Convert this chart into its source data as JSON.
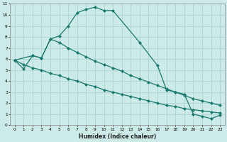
{
  "xlabel": "Humidex (Indice chaleur)",
  "bg_color": "#cceae7",
  "grid_color": "#aad4d0",
  "line_color": "#1a7a6e",
  "xlim": [
    -0.5,
    23.5
  ],
  "ylim": [
    0,
    11
  ],
  "xticks": [
    0,
    1,
    2,
    3,
    4,
    5,
    6,
    7,
    8,
    9,
    10,
    11,
    12,
    13,
    14,
    15,
    16,
    17,
    18,
    19,
    20,
    21,
    22,
    23
  ],
  "yticks": [
    0,
    1,
    2,
    3,
    4,
    5,
    6,
    7,
    8,
    9,
    10,
    11
  ],
  "curve1_x": [
    0,
    1,
    2,
    3,
    4,
    5,
    6,
    7,
    8,
    9,
    10,
    11,
    14,
    16,
    17,
    18,
    19,
    20,
    21,
    22,
    23
  ],
  "curve1_y": [
    5.9,
    5.1,
    6.3,
    6.1,
    7.8,
    8.1,
    9.0,
    10.2,
    10.5,
    10.7,
    10.4,
    10.4,
    7.5,
    5.4,
    3.2,
    3.0,
    2.8,
    1.0,
    0.8,
    0.6,
    0.9
  ],
  "curve2_x": [
    0,
    2,
    3,
    4,
    5,
    6,
    7,
    8,
    9,
    10,
    11,
    12,
    13,
    14,
    15,
    16,
    17,
    18,
    19,
    20,
    21,
    22,
    23
  ],
  "curve2_y": [
    5.9,
    6.3,
    6.1,
    7.8,
    7.5,
    7.0,
    6.6,
    6.2,
    5.8,
    5.5,
    5.2,
    4.9,
    4.5,
    4.2,
    3.9,
    3.6,
    3.3,
    3.0,
    2.7,
    2.4,
    2.2,
    2.0,
    1.8
  ],
  "curve3_x": [
    0,
    1,
    2,
    3,
    4,
    5,
    6,
    7,
    8,
    9,
    10,
    11,
    12,
    13,
    14,
    15,
    16,
    17,
    18,
    19,
    20,
    21,
    22,
    23
  ],
  "curve3_y": [
    5.9,
    5.5,
    5.2,
    5.0,
    4.7,
    4.5,
    4.2,
    4.0,
    3.7,
    3.5,
    3.2,
    3.0,
    2.8,
    2.6,
    2.4,
    2.2,
    2.0,
    1.8,
    1.7,
    1.5,
    1.4,
    1.3,
    1.2,
    1.1
  ]
}
